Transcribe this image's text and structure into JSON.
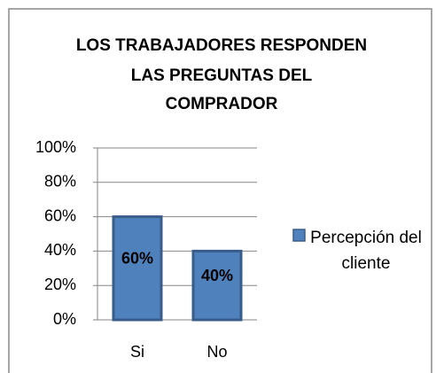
{
  "chart_data": {
    "type": "bar",
    "title": [
      "LOS TRABAJADORES RESPONDEN",
      "LAS PREGUNTAS DEL",
      "COMPRADOR"
    ],
    "categories": [
      "Si",
      "No"
    ],
    "series": [
      {
        "name": "Percepción del cliente",
        "color": "#4f81bd",
        "values": [
          60,
          40
        ],
        "value_labels": [
          "60%",
          "40%"
        ]
      }
    ],
    "ylim": [
      0,
      100
    ],
    "yticks": [
      {
        "value": 0,
        "label": "0%"
      },
      {
        "value": 20,
        "label": "20%"
      },
      {
        "value": 40,
        "label": "40%"
      },
      {
        "value": 60,
        "label": "60%"
      },
      {
        "value": 80,
        "label": "80%"
      },
      {
        "value": 100,
        "label": "100%"
      }
    ],
    "grid": true,
    "legend": "right"
  }
}
